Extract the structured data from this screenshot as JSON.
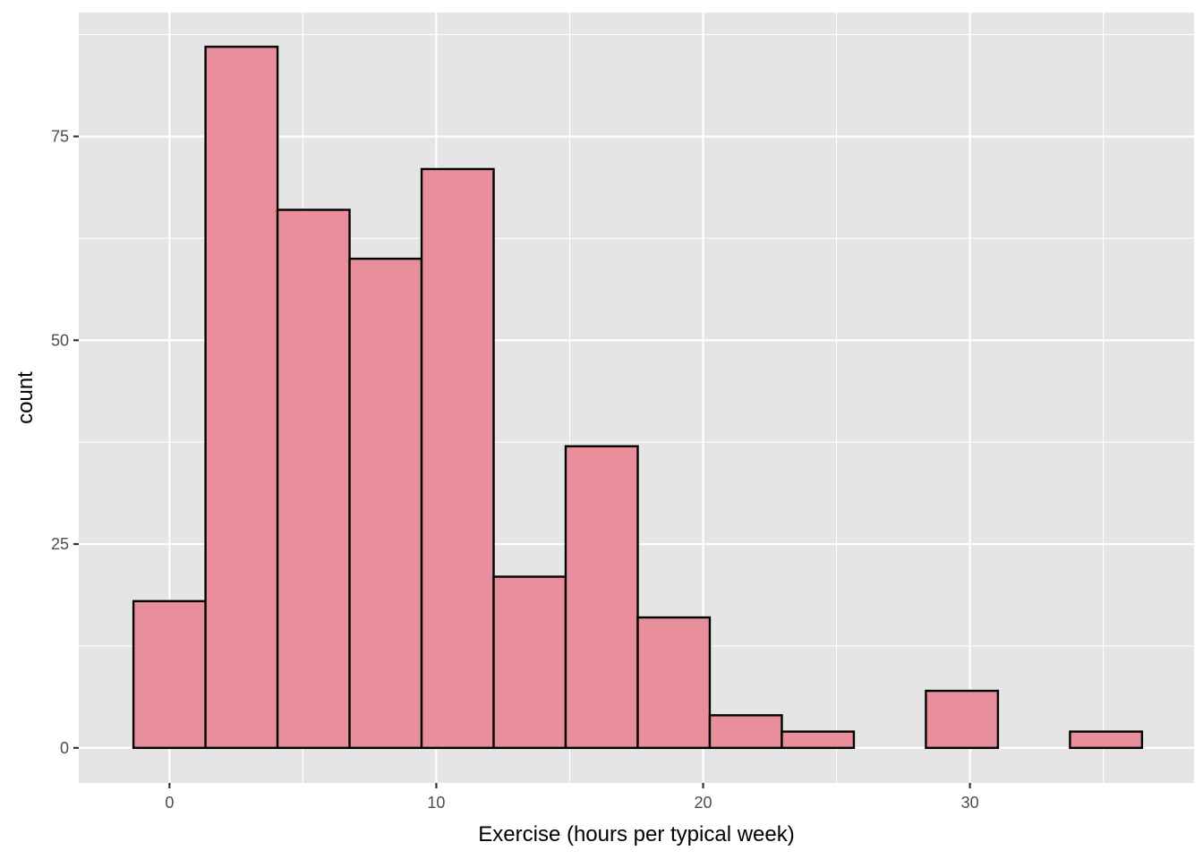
{
  "chart_data": {
    "type": "bar",
    "subtype": "histogram",
    "title": "",
    "xlabel": "Exercise (hours per typical week)",
    "ylabel": "count",
    "xlim": [
      -3.4,
      38.4
    ],
    "ylim": [
      -4.3,
      90.2
    ],
    "x_ticks": [
      0,
      10,
      20,
      30
    ],
    "y_ticks": [
      0,
      25,
      50,
      75
    ],
    "x_minor": [
      5,
      15,
      25,
      35
    ],
    "y_minor": [
      12.5,
      37.5,
      62.5,
      87.5
    ],
    "bins": [
      {
        "x0": -1.35,
        "x1": 1.35,
        "count": 18
      },
      {
        "x0": 1.35,
        "x1": 4.05,
        "count": 86
      },
      {
        "x0": 4.05,
        "x1": 6.75,
        "count": 66
      },
      {
        "x0": 6.75,
        "x1": 9.45,
        "count": 60
      },
      {
        "x0": 9.45,
        "x1": 12.15,
        "count": 71
      },
      {
        "x0": 12.15,
        "x1": 14.85,
        "count": 21
      },
      {
        "x0": 14.85,
        "x1": 17.55,
        "count": 37
      },
      {
        "x0": 17.55,
        "x1": 20.25,
        "count": 16
      },
      {
        "x0": 20.25,
        "x1": 22.95,
        "count": 4
      },
      {
        "x0": 22.95,
        "x1": 25.65,
        "count": 2
      },
      {
        "x0": 25.65,
        "x1": 28.35,
        "count": 0
      },
      {
        "x0": 28.35,
        "x1": 31.05,
        "count": 7
      },
      {
        "x0": 31.05,
        "x1": 33.75,
        "count": 0
      },
      {
        "x0": 33.75,
        "x1": 36.45,
        "count": 2
      }
    ],
    "grid": true,
    "colors": {
      "panel_background": "#e5e5e5",
      "grid": "#ffffff",
      "bar_fill": "#e88f9b",
      "bar_outline": "#000000",
      "tick_text": "#4d4d4d",
      "tick_mark": "#333333"
    }
  }
}
